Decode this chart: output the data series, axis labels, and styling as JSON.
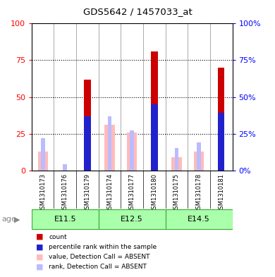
{
  "title": "GDS5642 / 1457033_at",
  "samples": [
    "GSM1310173",
    "GSM1310176",
    "GSM1310179",
    "GSM1310174",
    "GSM1310177",
    "GSM1310180",
    "GSM1310175",
    "GSM1310178",
    "GSM1310181"
  ],
  "age_groups": [
    {
      "label": "E11.5",
      "start": 0,
      "end": 3
    },
    {
      "label": "E12.5",
      "start": 3,
      "end": 6
    },
    {
      "label": "E14.5",
      "start": 6,
      "end": 9
    }
  ],
  "count_values": [
    0,
    0,
    62,
    0,
    0,
    81,
    0,
    0,
    70
  ],
  "percentile_values": [
    0,
    0,
    37,
    0,
    0,
    45,
    0,
    0,
    39
  ],
  "absent_value_vals": [
    13,
    0,
    0,
    31,
    26,
    0,
    9,
    13,
    0
  ],
  "absent_rank_vals": [
    22,
    4,
    0,
    37,
    27,
    0,
    15,
    19,
    0
  ],
  "ylim": [
    0,
    100
  ],
  "yticks": [
    0,
    25,
    50,
    75,
    100
  ],
  "count_color": "#cc0000",
  "percentile_color": "#2222cc",
  "absent_value_color": "#ffbbbb",
  "absent_rank_color": "#bbbbff",
  "age_group_color_light": "#aaffaa",
  "age_group_color_dark": "#55dd55",
  "age_group_border_color": "#33aa33",
  "sample_bg_color": "#cccccc",
  "plot_bg_color": "#ffffff",
  "absent_bar_width": 0.45,
  "count_bar_width": 0.3,
  "rank_bar_width": 0.18
}
